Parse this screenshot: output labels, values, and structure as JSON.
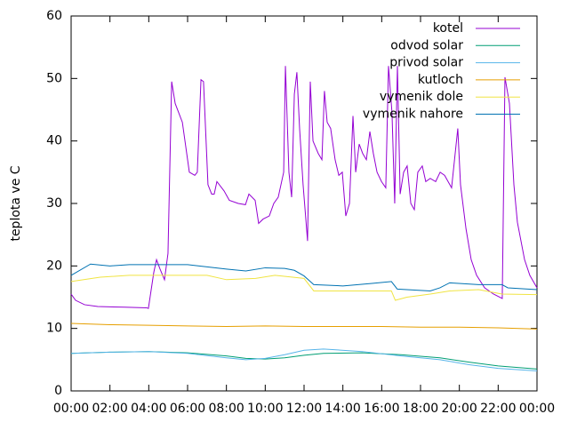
{
  "chart_data": {
    "type": "line",
    "ylabel": "teplota ve C",
    "xlim": [
      0,
      24
    ],
    "xticks": [
      {
        "value": 0,
        "label": "00:00"
      },
      {
        "value": 2,
        "label": "02:00"
      },
      {
        "value": 4,
        "label": "04:00"
      },
      {
        "value": 6,
        "label": "06:00"
      },
      {
        "value": 8,
        "label": "08:00"
      },
      {
        "value": 10,
        "label": "10:00"
      },
      {
        "value": 12,
        "label": "12:00"
      },
      {
        "value": 14,
        "label": "14:00"
      },
      {
        "value": 16,
        "label": "16:00"
      },
      {
        "value": 18,
        "label": "18:00"
      },
      {
        "value": 20,
        "label": "20:00"
      },
      {
        "value": 22,
        "label": "22:00"
      },
      {
        "value": 24,
        "label": "00:00"
      }
    ],
    "ylim": [
      0,
      60
    ],
    "yticks": [
      0,
      10,
      20,
      30,
      40,
      50,
      60
    ],
    "legend": "top-right",
    "series": [
      {
        "name": "kotel",
        "color": "#9400d3",
        "x": [
          0,
          0.23,
          0.69,
          1.37,
          2.75,
          3.89,
          3.98,
          4.26,
          4.4,
          4.58,
          4.81,
          4.99,
          5.18,
          5.36,
          5.73,
          6.09,
          6.37,
          6.5,
          6.69,
          6.82,
          7.05,
          7.24,
          7.37,
          7.51,
          7.88,
          8.15,
          8.61,
          8.98,
          9.16,
          9.48,
          9.66,
          9.89,
          10.21,
          10.44,
          10.67,
          10.95,
          11.04,
          11.22,
          11.36,
          11.5,
          11.63,
          11.77,
          11.95,
          12.18,
          12.32,
          12.46,
          12.73,
          12.92,
          13.05,
          13.19,
          13.37,
          13.6,
          13.79,
          13.97,
          14.15,
          14.34,
          14.52,
          14.66,
          14.84,
          15.02,
          15.21,
          15.39,
          15.57,
          15.76,
          15.99,
          16.21,
          16.35,
          16.53,
          16.67,
          16.81,
          16.95,
          17.13,
          17.31,
          17.5,
          17.68,
          17.86,
          18.09,
          18.27,
          18.5,
          18.78,
          19.01,
          19.24,
          19.42,
          19.6,
          19.92,
          20.06,
          20.34,
          20.61,
          20.89,
          21.3,
          21.76,
          22.21,
          22.35,
          22.58,
          22.81,
          22.99,
          23.36,
          23.63,
          24
        ],
        "values": [
          15.5,
          14.5,
          13.8,
          13.5,
          13.4,
          13.3,
          13.2,
          19,
          21,
          19.5,
          17.8,
          22,
          49.5,
          46,
          43,
          35,
          34.5,
          35,
          49.8,
          49.5,
          33,
          31.5,
          31.5,
          33.5,
          32,
          30.5,
          30,
          29.8,
          31.5,
          30.5,
          26.8,
          27.5,
          28,
          30,
          31,
          35,
          52,
          35,
          31,
          47.5,
          51,
          42,
          33,
          24,
          49.5,
          40,
          38,
          37,
          48,
          43,
          42,
          37,
          34.5,
          35,
          28,
          30,
          44,
          35,
          39.5,
          38,
          37,
          41.5,
          38,
          35,
          33.5,
          32.5,
          52,
          44.5,
          30,
          52,
          31.5,
          35,
          36,
          30,
          29,
          35,
          36,
          33.5,
          34,
          33.5,
          35,
          34.5,
          33.5,
          32.5,
          42,
          33,
          26,
          21,
          18.5,
          16.5,
          15.5,
          14.8,
          50.2,
          46,
          33,
          27,
          21,
          18.5,
          16.5
        ]
      },
      {
        "name": "odvod solar",
        "color": "#009e73",
        "x": [
          0,
          2,
          4,
          6,
          8,
          9,
          10,
          11,
          12,
          13,
          15,
          17,
          19,
          20.5,
          22,
          24
        ],
        "values": [
          6,
          6.2,
          6.3,
          6.1,
          5.6,
          5.2,
          5.1,
          5.3,
          5.7,
          6,
          6.1,
          5.8,
          5.3,
          4.6,
          4,
          3.5
        ]
      },
      {
        "name": "privod solar",
        "color": "#56b4e9",
        "x": [
          0,
          2,
          4,
          6,
          8,
          9,
          10,
          11,
          12,
          13,
          15,
          17,
          19,
          20.5,
          22,
          24
        ],
        "values": [
          6,
          6.2,
          6.3,
          6,
          5.3,
          5,
          5.2,
          5.8,
          6.5,
          6.7,
          6.3,
          5.6,
          5,
          4.2,
          3.6,
          3.2
        ]
      },
      {
        "name": "kutloch",
        "color": "#e69f00",
        "x": [
          0,
          2,
          4,
          6,
          8,
          10,
          12,
          14,
          16,
          18,
          20,
          22,
          24
        ],
        "values": [
          10.8,
          10.6,
          10.5,
          10.4,
          10.3,
          10.4,
          10.3,
          10.3,
          10.3,
          10.2,
          10.2,
          10.1,
          9.9
        ]
      },
      {
        "name": "vymenik dole",
        "color": "#f0e442",
        "x": [
          0,
          1.5,
          3,
          7,
          8,
          9.5,
          10.5,
          12,
          12.5,
          16.5,
          16.7,
          17.3,
          18.5,
          19.5,
          21,
          22.2,
          24
        ],
        "values": [
          17.5,
          18.2,
          18.5,
          18.5,
          17.8,
          18,
          18.5,
          18,
          16,
          16,
          14.5,
          15,
          15.5,
          16,
          16.2,
          15.5,
          15.4
        ]
      },
      {
        "name": "vymenik nahore",
        "color": "#0072b2",
        "x": [
          0,
          1,
          2,
          3,
          6,
          8,
          9,
          10,
          11,
          11.5,
          12,
          12.5,
          14,
          15.5,
          16.5,
          16.8,
          18.5,
          19,
          19.5,
          21,
          22.2,
          22.5,
          24
        ],
        "values": [
          18.5,
          20.3,
          20,
          20.2,
          20.2,
          19.5,
          19.2,
          19.7,
          19.6,
          19.3,
          18.4,
          17,
          16.8,
          17.2,
          17.5,
          16.3,
          16,
          16.5,
          17.3,
          17,
          17,
          16.5,
          16.2
        ]
      }
    ]
  }
}
